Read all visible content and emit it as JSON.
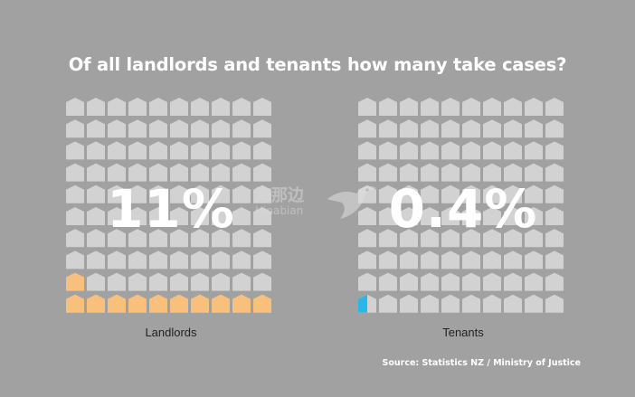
{
  "chart_data": [
    {
      "type": "icon-grid",
      "title": "Of all landlords and tenants how many take cases?",
      "label": "Landlords",
      "value_percent": 11,
      "value_text": "11%",
      "grid": {
        "rows": 10,
        "cols": 10,
        "fill_order": "bottom-left-first"
      },
      "colors": {
        "filled": "#f9c07d",
        "empty": "#d2d2d2"
      }
    },
    {
      "type": "icon-grid",
      "label": "Tenants",
      "value_percent": 0.4,
      "value_text": "0.4%",
      "grid": {
        "rows": 10,
        "cols": 10,
        "fill_order": "bottom-left-first"
      },
      "colors": {
        "filled": "#29b6e8",
        "empty": "#d2d2d2"
      }
    }
  ],
  "title": "Of all landlords and tenants how many take cases?",
  "source": "Source: Statistics NZ / Ministry of Justice",
  "watermark": {
    "cn": "海那边",
    "en": "Hinabian"
  },
  "icon_name": "house-icon"
}
